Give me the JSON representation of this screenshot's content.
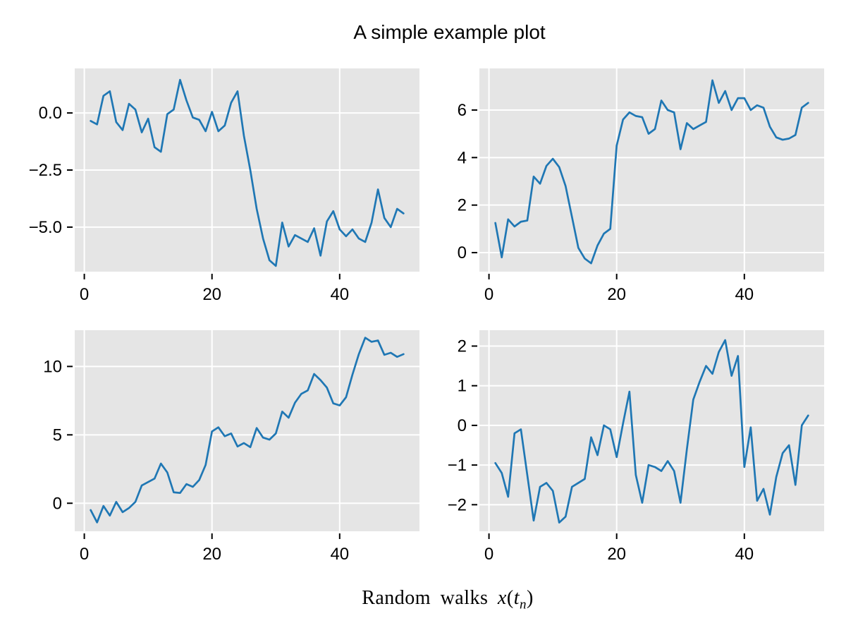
{
  "figure": {
    "title": "A simple example plot",
    "xlabel": {
      "prefix": "Random walks ",
      "math_x": "x",
      "open": "(",
      "math_t": "t",
      "sub": "n",
      "close": ")"
    },
    "colors": {
      "line": "#1f77b4",
      "plot_bg": "#e5e5e5",
      "grid": "#ffffff",
      "text": "#000000",
      "tick": "#000000"
    }
  },
  "chart_data": [
    {
      "type": "line",
      "id": "top-left",
      "position": "row 1 col 1",
      "x_start": 1,
      "x_end": 50,
      "xlim": [
        -1.5,
        52.5
      ],
      "ylim": [
        -6.95,
        1.95
      ],
      "grid": true,
      "xticks": [
        {
          "v": 0,
          "label": "0"
        },
        {
          "v": 20,
          "label": "20"
        },
        {
          "v": 40,
          "label": "40"
        }
      ],
      "yticks": [
        {
          "v": 0,
          "label": "0.0"
        },
        {
          "v": -2.5,
          "label": "−2.5"
        },
        {
          "v": -5,
          "label": "−5.0"
        }
      ],
      "values": [
        -0.35,
        -0.5,
        0.75,
        0.95,
        -0.4,
        -0.75,
        0.4,
        0.15,
        -0.85,
        -0.25,
        -1.5,
        -1.7,
        -0.05,
        0.15,
        1.45,
        0.55,
        -0.2,
        -0.3,
        -0.8,
        0.05,
        -0.8,
        -0.55,
        0.45,
        0.95,
        -1.0,
        -2.5,
        -4.2,
        -5.5,
        -6.45,
        -6.7,
        -4.8,
        -5.85,
        -5.35,
        -5.5,
        -5.65,
        -5.05,
        -6.25,
        -4.75,
        -4.3,
        -5.1,
        -5.4,
        -5.1,
        -5.5,
        -5.65,
        -4.8,
        -3.35,
        -4.6,
        -5.0,
        -4.2,
        -4.4
      ]
    },
    {
      "type": "line",
      "id": "top-right",
      "position": "row 1 col 2",
      "x_start": 1,
      "x_end": 50,
      "xlim": [
        -1.5,
        52.5
      ],
      "ylim": [
        -0.8,
        7.75
      ],
      "grid": true,
      "xticks": [
        {
          "v": 0,
          "label": "0"
        },
        {
          "v": 20,
          "label": "20"
        },
        {
          "v": 40,
          "label": "40"
        }
      ],
      "yticks": [
        {
          "v": 0,
          "label": "0"
        },
        {
          "v": 2,
          "label": "2"
        },
        {
          "v": 4,
          "label": "4"
        },
        {
          "v": 6,
          "label": "6"
        }
      ],
      "values": [
        1.25,
        -0.2,
        1.4,
        1.1,
        1.3,
        1.35,
        3.2,
        2.9,
        3.65,
        3.95,
        3.6,
        2.8,
        1.5,
        0.2,
        -0.25,
        -0.45,
        0.3,
        0.8,
        1.0,
        4.5,
        5.6,
        5.9,
        5.75,
        5.7,
        5.0,
        5.2,
        6.4,
        6.0,
        5.9,
        4.35,
        5.45,
        5.2,
        5.35,
        5.5,
        7.25,
        6.3,
        6.8,
        6.0,
        6.5,
        6.5,
        6.0,
        6.2,
        6.1,
        5.3,
        4.85,
        4.75,
        4.8,
        4.95,
        6.1,
        6.3
      ]
    },
    {
      "type": "line",
      "id": "bottom-left",
      "position": "row 2 col 1",
      "x_start": 1,
      "x_end": 50,
      "xlim": [
        -1.5,
        52.5
      ],
      "ylim": [
        -2.05,
        12.65
      ],
      "grid": true,
      "xticks": [
        {
          "v": 0,
          "label": "0"
        },
        {
          "v": 20,
          "label": "20"
        },
        {
          "v": 40,
          "label": "40"
        }
      ],
      "yticks": [
        {
          "v": 0,
          "label": "0"
        },
        {
          "v": 5,
          "label": "5"
        },
        {
          "v": 10,
          "label": "10"
        }
      ],
      "values": [
        -0.5,
        -1.4,
        -0.2,
        -0.9,
        0.1,
        -0.65,
        -0.35,
        0.1,
        1.3,
        1.55,
        1.8,
        2.9,
        2.25,
        0.8,
        0.75,
        1.4,
        1.2,
        1.7,
        2.8,
        5.25,
        5.55,
        4.9,
        5.1,
        4.15,
        4.4,
        4.1,
        5.5,
        4.8,
        4.65,
        5.1,
        6.7,
        6.25,
        7.35,
        8.0,
        8.25,
        9.45,
        9.0,
        8.45,
        7.3,
        7.15,
        7.75,
        9.4,
        10.9,
        12.1,
        11.8,
        11.9,
        10.85,
        11.0,
        10.7,
        10.9
      ]
    },
    {
      "type": "line",
      "id": "bottom-right",
      "position": "row 2 col 2",
      "x_start": 1,
      "x_end": 50,
      "xlim": [
        -1.5,
        52.5
      ],
      "ylim": [
        -2.67,
        2.4
      ],
      "grid": true,
      "xticks": [
        {
          "v": 0,
          "label": "0"
        },
        {
          "v": 20,
          "label": "20"
        },
        {
          "v": 40,
          "label": "40"
        }
      ],
      "yticks": [
        {
          "v": -2,
          "label": "−2"
        },
        {
          "v": -1,
          "label": "−1"
        },
        {
          "v": 0,
          "label": "0"
        },
        {
          "v": 1,
          "label": "1"
        },
        {
          "v": 2,
          "label": "2"
        }
      ],
      "values": [
        -0.95,
        -1.2,
        -1.8,
        -0.2,
        -0.1,
        -1.25,
        -2.4,
        -1.55,
        -1.45,
        -1.65,
        -2.45,
        -2.3,
        -1.55,
        -1.45,
        -1.35,
        -0.3,
        -0.75,
        0.0,
        -0.1,
        -0.8,
        0.05,
        0.85,
        -1.25,
        -1.95,
        -1.0,
        -1.05,
        -1.15,
        -0.9,
        -1.15,
        -1.95,
        -0.6,
        0.65,
        1.1,
        1.5,
        1.3,
        1.85,
        2.15,
        1.25,
        1.75,
        -1.05,
        -0.05,
        -1.9,
        -1.6,
        -2.25,
        -1.3,
        -0.7,
        -0.5,
        -1.5,
        0.0,
        0.25
      ]
    }
  ]
}
